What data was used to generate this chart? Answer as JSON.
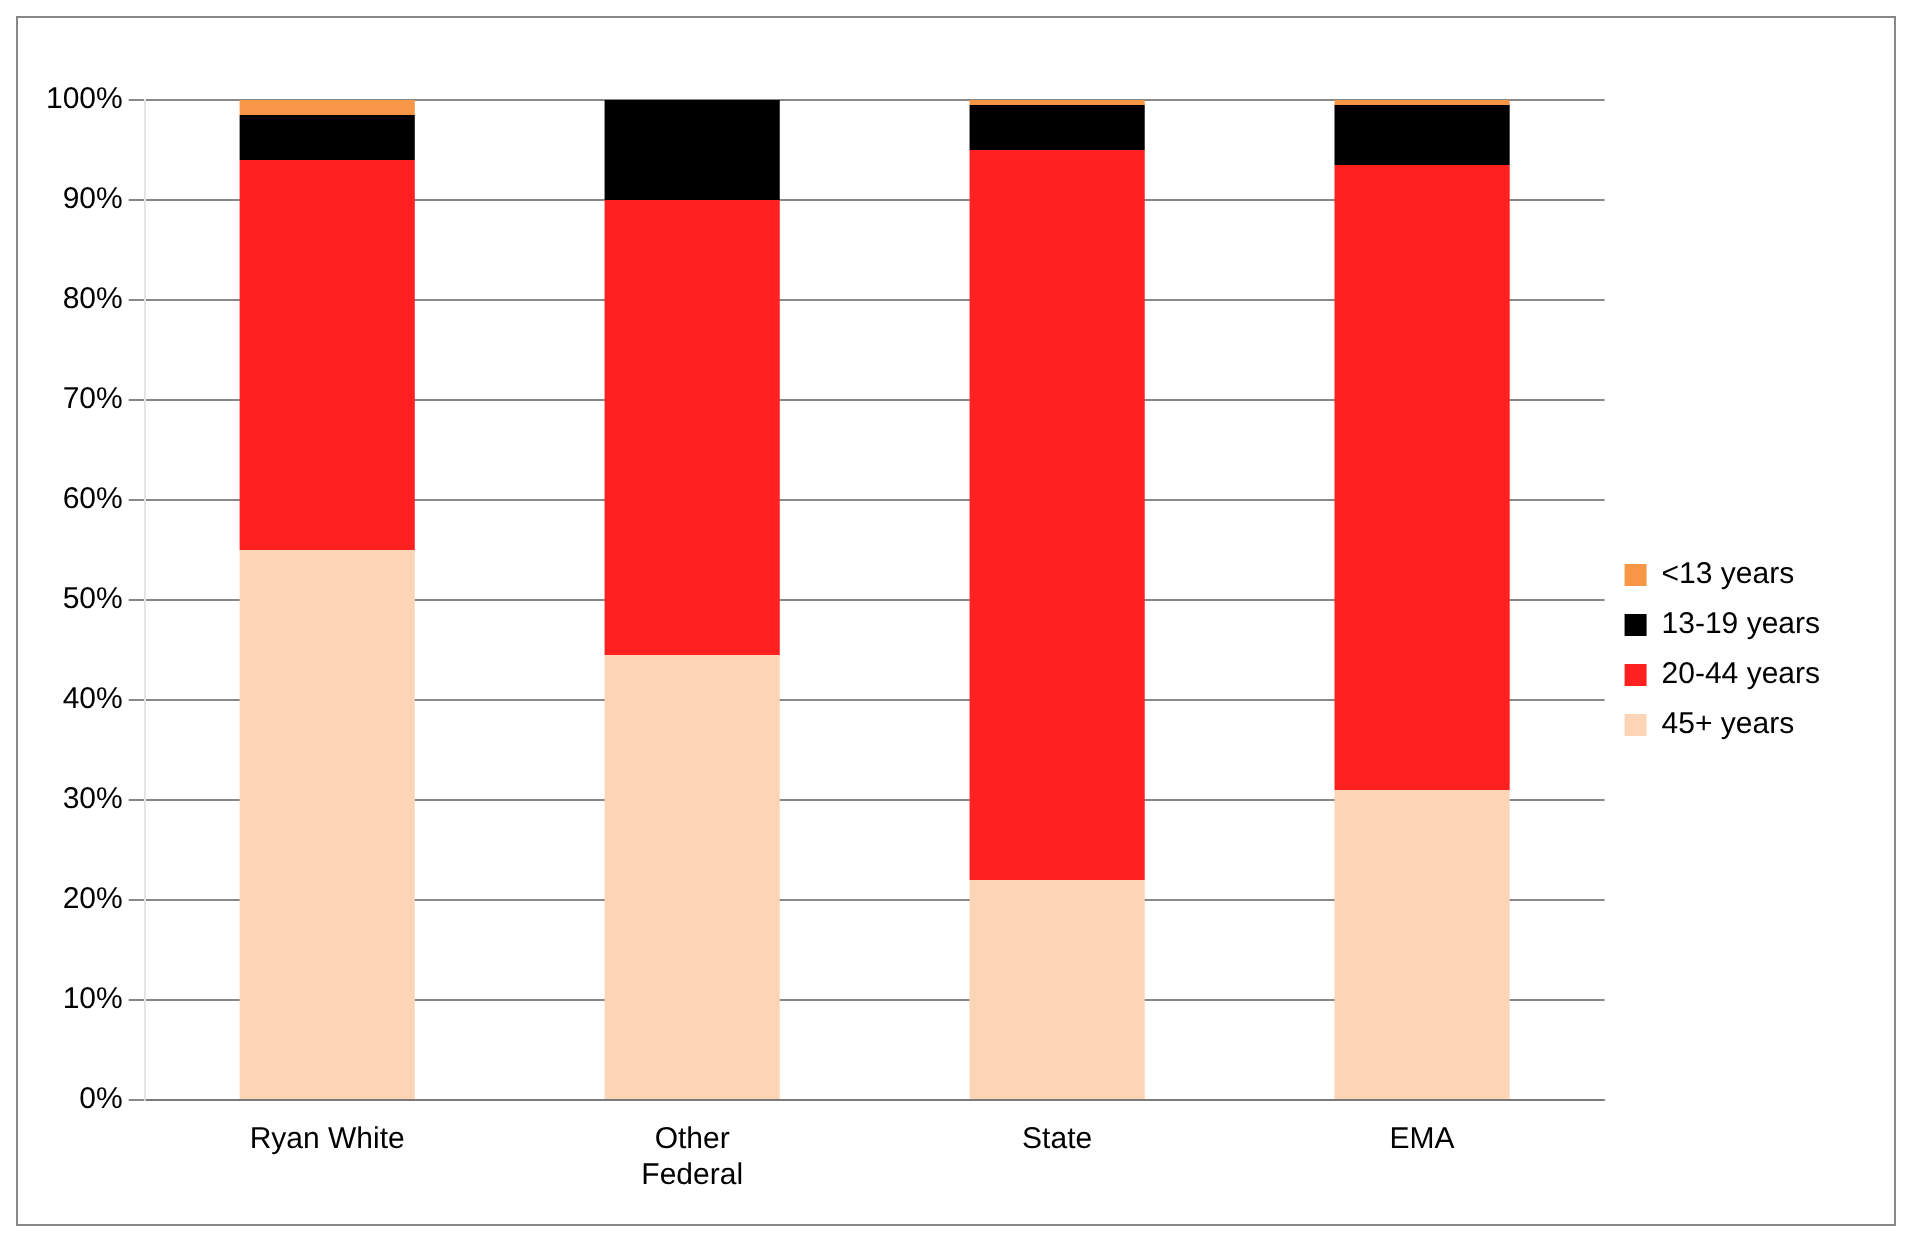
{
  "chart_data": {
    "type": "bar",
    "stacked": true,
    "categories": [
      "Ryan White",
      "Other Federal",
      "State",
      "EMA"
    ],
    "series": [
      {
        "name": "45+ years",
        "color": "#fbd5b5",
        "values": [
          55,
          44.5,
          22,
          31
        ]
      },
      {
        "name": "20-44 years",
        "color": "#ff2020",
        "values": [
          39,
          45.5,
          73,
          62.5
        ]
      },
      {
        "name": "13-19 years",
        "color": "#000000",
        "values": [
          4.5,
          10,
          4.5,
          6
        ]
      },
      {
        "name": "<13 years",
        "color": "#f79646",
        "values": [
          1.5,
          0,
          0.5,
          0.5
        ]
      }
    ],
    "ylim": [
      0,
      100
    ],
    "yticks": [
      {
        "value": 0,
        "label": "0%"
      },
      {
        "value": 10,
        "label": "10%"
      },
      {
        "value": 20,
        "label": "20%"
      },
      {
        "value": 30,
        "label": "30%"
      },
      {
        "value": 40,
        "label": "40%"
      },
      {
        "value": 50,
        "label": "50%"
      },
      {
        "value": 60,
        "label": "60%"
      },
      {
        "value": 70,
        "label": "70%"
      },
      {
        "value": 80,
        "label": "80%"
      },
      {
        "value": 90,
        "label": "90%"
      },
      {
        "value": 100,
        "label": "100%"
      }
    ],
    "grid": "y",
    "legend": "right"
  }
}
